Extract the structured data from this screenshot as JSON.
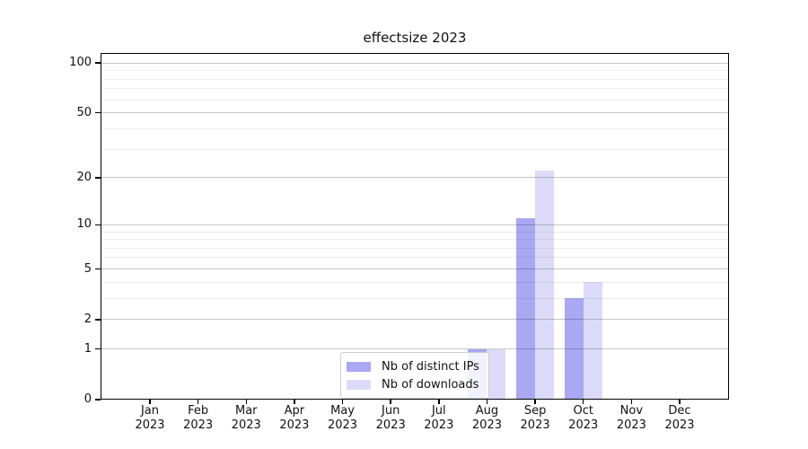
{
  "chart_data": {
    "type": "bar",
    "title": "effectsize 2023",
    "year": "2023",
    "categories": [
      "Jan",
      "Feb",
      "Mar",
      "Apr",
      "May",
      "Jun",
      "Jul",
      "Aug",
      "Sep",
      "Oct",
      "Nov",
      "Dec"
    ],
    "series": [
      {
        "name": "Nb of distinct IPs",
        "color": "#a8a8f3",
        "values": [
          0,
          0,
          0,
          0,
          0,
          0,
          0,
          1,
          11,
          3,
          0,
          0
        ]
      },
      {
        "name": "Nb of downloads",
        "color": "#dbdbf9",
        "values": [
          0,
          0,
          0,
          0,
          0,
          0,
          0,
          1,
          22,
          4,
          0,
          0
        ]
      }
    ],
    "yscale": "log1p",
    "ylim": [
      0,
      115
    ],
    "yticks_major": [
      0,
      1,
      2,
      5,
      10,
      20,
      50,
      100
    ],
    "yticks_minor": [
      3,
      4,
      6,
      7,
      8,
      9,
      30,
      40,
      60,
      70,
      80,
      90
    ],
    "grid": "horizontal",
    "legend_position": "lower-center",
    "colors": {
      "major_grid": "rgba(0,0,0,0.22)",
      "minor_grid": "rgba(0,0,0,0.07)",
      "axis": "#000000",
      "background": "#ffffff"
    }
  }
}
